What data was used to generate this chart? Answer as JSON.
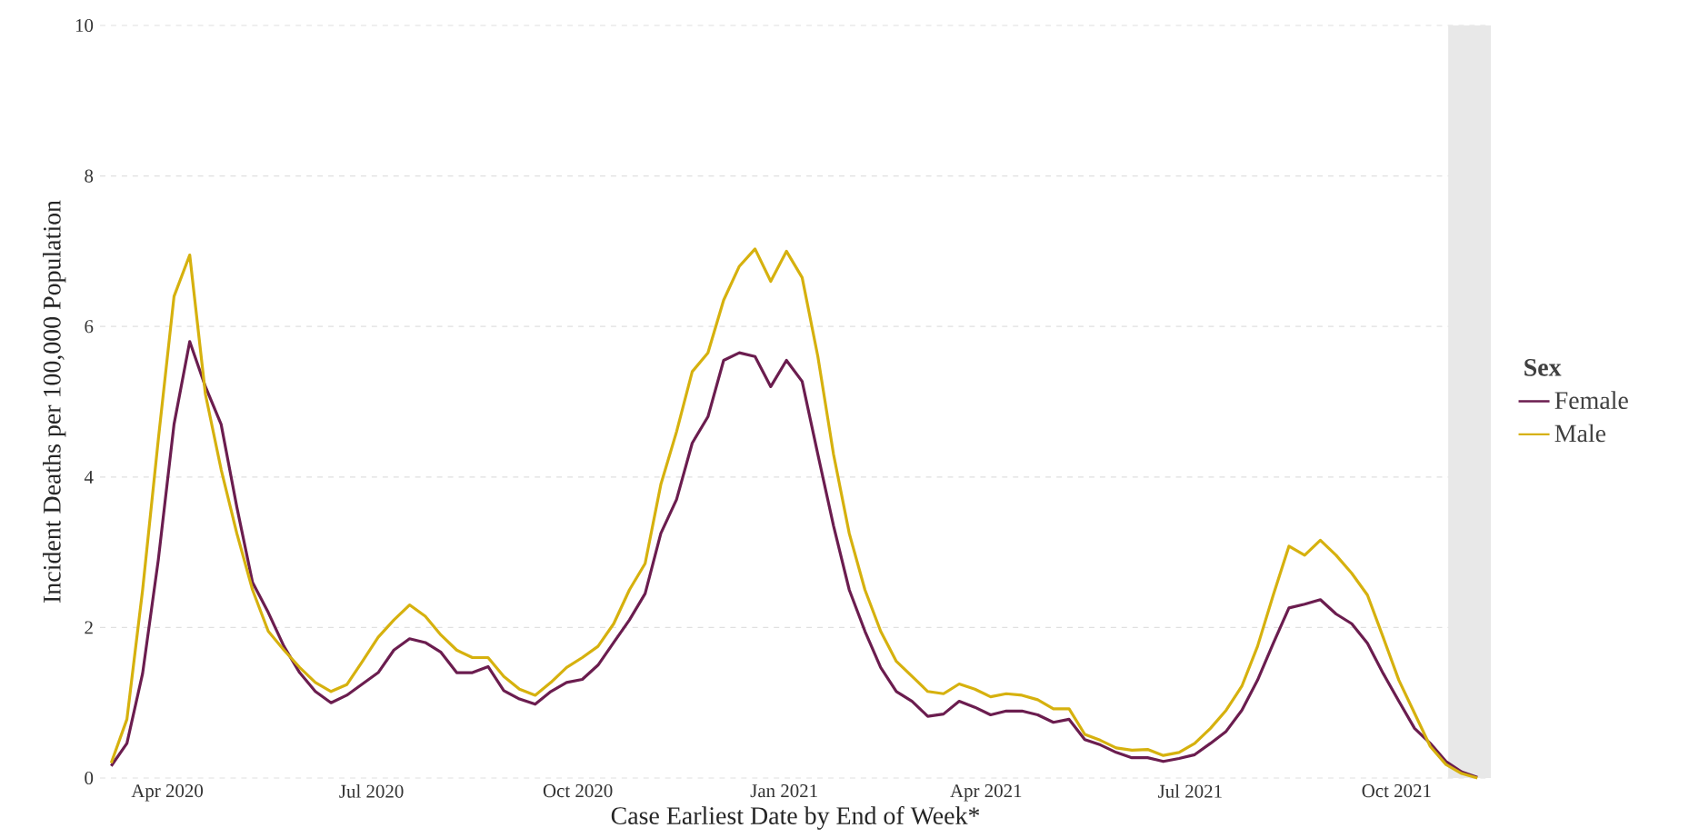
{
  "chart_data": {
    "type": "line",
    "xlabel": "Case Earliest Date by End of Week*",
    "ylabel": "Incident Deaths per 100,000 Population",
    "legend_title": "Sex",
    "x": [
      "2020-03-07",
      "2020-03-14",
      "2020-03-21",
      "2020-03-28",
      "2020-04-04",
      "2020-04-11",
      "2020-04-18",
      "2020-04-25",
      "2020-05-02",
      "2020-05-09",
      "2020-05-16",
      "2020-05-23",
      "2020-05-30",
      "2020-06-06",
      "2020-06-13",
      "2020-06-20",
      "2020-06-27",
      "2020-07-04",
      "2020-07-11",
      "2020-07-18",
      "2020-07-25",
      "2020-08-01",
      "2020-08-08",
      "2020-08-15",
      "2020-08-22",
      "2020-08-29",
      "2020-09-05",
      "2020-09-12",
      "2020-09-19",
      "2020-09-26",
      "2020-10-03",
      "2020-10-10",
      "2020-10-17",
      "2020-10-24",
      "2020-10-31",
      "2020-11-07",
      "2020-11-14",
      "2020-11-21",
      "2020-11-28",
      "2020-12-05",
      "2020-12-12",
      "2020-12-19",
      "2020-12-26",
      "2021-01-02",
      "2021-01-09",
      "2021-01-16",
      "2021-01-23",
      "2021-01-30",
      "2021-02-06",
      "2021-02-13",
      "2021-02-20",
      "2021-02-27",
      "2021-03-06",
      "2021-03-13",
      "2021-03-20",
      "2021-03-27",
      "2021-04-03",
      "2021-04-10",
      "2021-04-17",
      "2021-04-24",
      "2021-05-01",
      "2021-05-08",
      "2021-05-15",
      "2021-05-22",
      "2021-05-29",
      "2021-06-05",
      "2021-06-12",
      "2021-06-19",
      "2021-06-26",
      "2021-07-03",
      "2021-07-10",
      "2021-07-17",
      "2021-07-24",
      "2021-07-31",
      "2021-08-07",
      "2021-08-14",
      "2021-08-21",
      "2021-08-28",
      "2021-09-04",
      "2021-09-11",
      "2021-09-18",
      "2021-09-25",
      "2021-10-02",
      "2021-10-09",
      "2021-10-16",
      "2021-10-23",
      "2021-10-30",
      "2021-11-06"
    ],
    "series": [
      {
        "name": "Female",
        "color": "#6b1d4f",
        "values": [
          0.16,
          0.46,
          1.39,
          2.9,
          4.7,
          5.8,
          5.2,
          4.7,
          3.6,
          2.6,
          2.2,
          1.75,
          1.4,
          1.15,
          1.0,
          1.1,
          1.25,
          1.4,
          1.7,
          1.85,
          1.8,
          1.67,
          1.4,
          1.4,
          1.48,
          1.16,
          1.05,
          0.98,
          1.15,
          1.27,
          1.31,
          1.5,
          1.8,
          2.1,
          2.45,
          3.25,
          3.7,
          4.45,
          4.8,
          5.55,
          5.65,
          5.6,
          5.2,
          5.55,
          5.27,
          4.3,
          3.35,
          2.5,
          1.95,
          1.47,
          1.15,
          1.02,
          0.82,
          0.85,
          1.02,
          0.94,
          0.84,
          0.89,
          0.89,
          0.84,
          0.74,
          0.78,
          0.51,
          0.44,
          0.34,
          0.27,
          0.27,
          0.22,
          0.26,
          0.31,
          0.46,
          0.62,
          0.9,
          1.3,
          1.79,
          2.26,
          2.31,
          2.37,
          2.18,
          2.05,
          1.79,
          1.39,
          1.02,
          0.66,
          0.46,
          0.22,
          0.08,
          0.01
        ]
      },
      {
        "name": "Male",
        "color": "#d6b10e",
        "values": [
          0.2,
          0.78,
          2.5,
          4.5,
          6.4,
          6.95,
          5.1,
          4.1,
          3.25,
          2.5,
          1.95,
          1.7,
          1.47,
          1.27,
          1.15,
          1.24,
          1.55,
          1.87,
          2.1,
          2.3,
          2.15,
          1.9,
          1.7,
          1.6,
          1.6,
          1.35,
          1.18,
          1.1,
          1.27,
          1.47,
          1.6,
          1.75,
          2.05,
          2.5,
          2.85,
          3.9,
          4.6,
          5.4,
          5.65,
          6.35,
          6.8,
          7.03,
          6.6,
          7.0,
          6.65,
          5.6,
          4.3,
          3.25,
          2.5,
          1.95,
          1.55,
          1.35,
          1.15,
          1.12,
          1.25,
          1.18,
          1.08,
          1.12,
          1.1,
          1.04,
          0.92,
          0.92,
          0.58,
          0.5,
          0.4,
          0.37,
          0.38,
          0.3,
          0.34,
          0.46,
          0.66,
          0.9,
          1.22,
          1.75,
          2.43,
          3.08,
          2.96,
          3.16,
          2.96,
          2.72,
          2.43,
          1.87,
          1.3,
          0.86,
          0.42,
          0.18,
          0.06,
          0.0
        ]
      }
    ],
    "xlim": [
      "2020-03-02",
      "2021-11-12"
    ],
    "xticks": [
      {
        "value": "2020-04-01",
        "label": "Apr 2020"
      },
      {
        "value": "2020-07-01",
        "label": "Jul 2020"
      },
      {
        "value": "2020-10-01",
        "label": "Oct 2020"
      },
      {
        "value": "2021-01-01",
        "label": "Jan 2021"
      },
      {
        "value": "2021-04-01",
        "label": "Apr 2021"
      },
      {
        "value": "2021-07-01",
        "label": "Jul 2021"
      },
      {
        "value": "2021-10-01",
        "label": "Oct 2021"
      }
    ],
    "ylim": [
      0,
      10
    ],
    "yticks": [
      0,
      2,
      4,
      6,
      8,
      10
    ],
    "bands": [
      {
        "axis": "x",
        "from": "2021-10-24",
        "to": "2021-11-12",
        "color": "#e8e8e8"
      }
    ],
    "grid": "y",
    "legend": "right",
    "line_style": "solid",
    "marker": "none"
  }
}
